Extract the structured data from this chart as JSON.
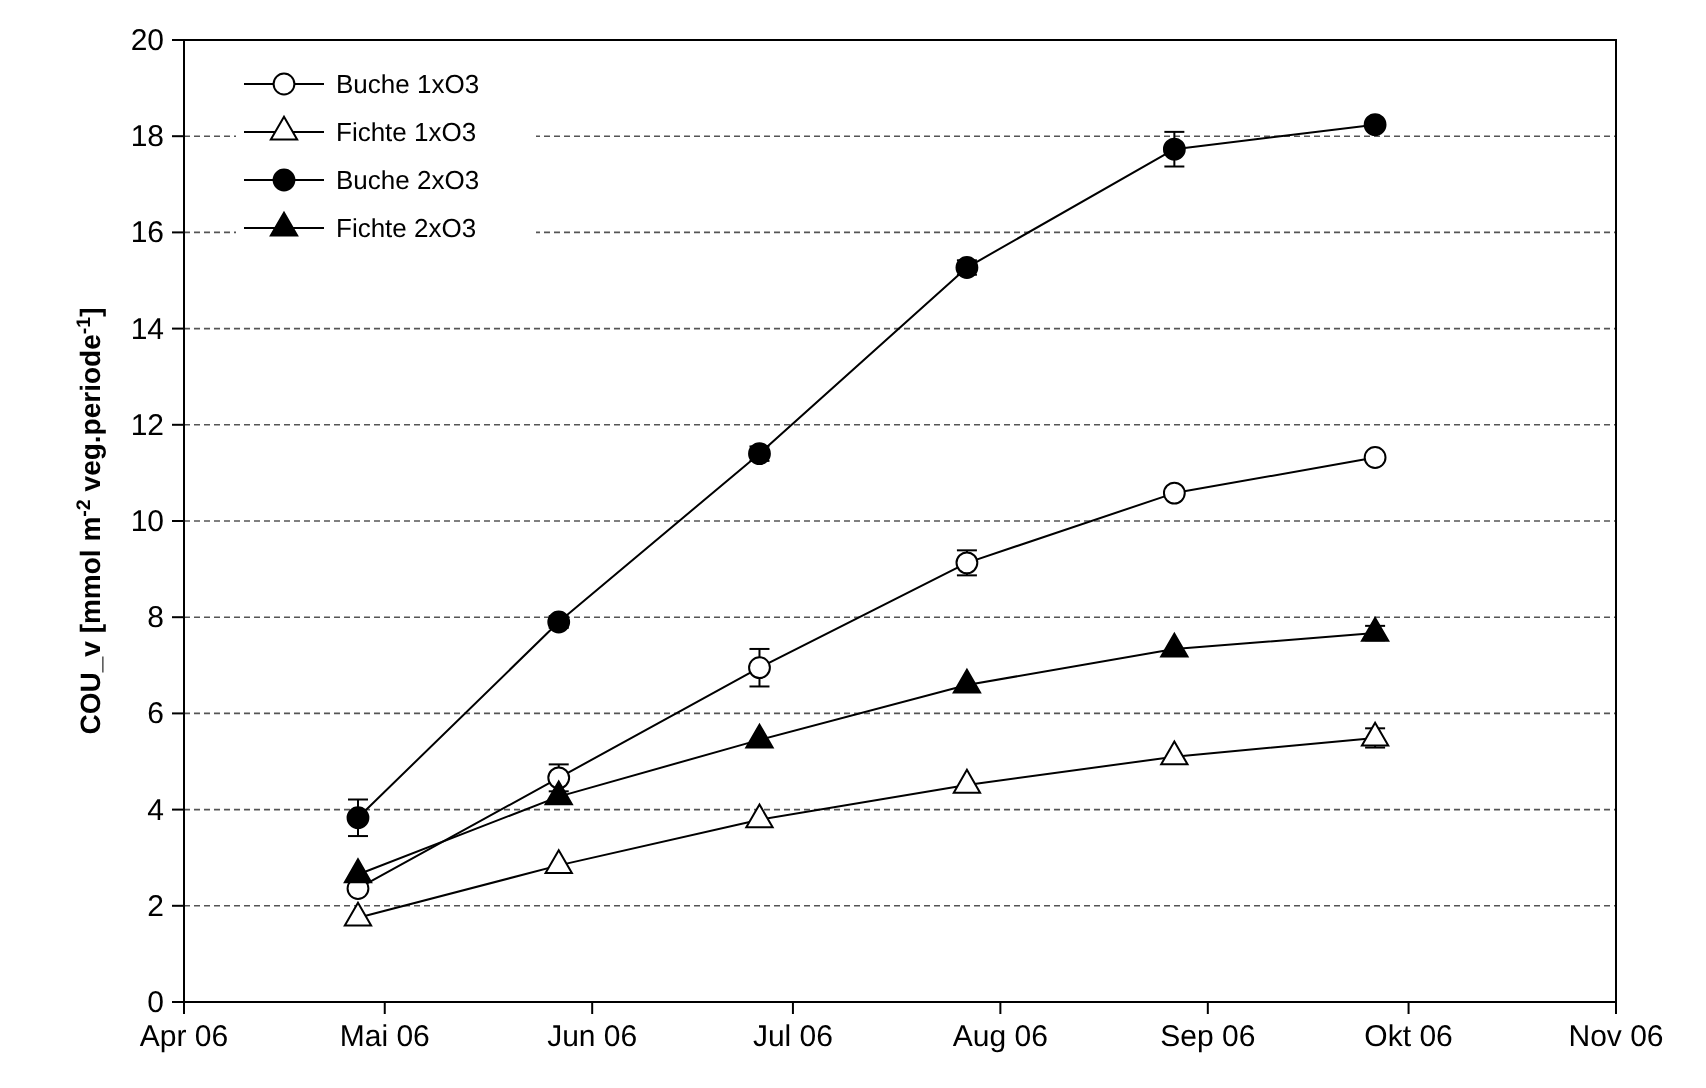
{
  "chart_data": {
    "type": "line",
    "ylabel": "COU_v [mmol m$^{-2}$ veg.periode$^{-1}$]",
    "x": [
      "2006-04-27",
      "2006-05-27",
      "2006-06-26",
      "2006-07-27",
      "2006-08-27",
      "2006-09-26"
    ],
    "xlim": [
      "2006-04-01",
      "2006-11-01"
    ],
    "xticks": [
      {
        "value": "2006-04-01",
        "label": "Apr 06"
      },
      {
        "value": "2006-05-01",
        "label": "Mai 06"
      },
      {
        "value": "2006-06-01",
        "label": "Jun 06"
      },
      {
        "value": "2006-07-01",
        "label": "Jul 06"
      },
      {
        "value": "2006-08-01",
        "label": "Aug 06"
      },
      {
        "value": "2006-09-01",
        "label": "Sep 06"
      },
      {
        "value": "2006-10-01",
        "label": "Okt 06"
      },
      {
        "value": "2006-11-01",
        "label": "Nov 06"
      }
    ],
    "ylim": [
      0,
      20
    ],
    "yticks": [
      0,
      2,
      4,
      6,
      8,
      10,
      12,
      14,
      16,
      18,
      20
    ],
    "grid": "y",
    "legend": "top left",
    "line_style": "solid",
    "series": [
      {
        "name": "Buche 1xO3",
        "color": "#ffffff",
        "marker": "circle",
        "values": [
          2.36,
          4.66,
          6.95,
          9.13,
          10.58,
          11.32
        ],
        "errors": [
          null,
          0.28,
          0.39,
          0.26,
          null,
          null
        ]
      },
      {
        "name": "Fichte 1xO3",
        "color": "#ffffff",
        "marker": "triangle",
        "values": [
          1.75,
          2.84,
          3.79,
          4.51,
          5.1,
          5.49
        ],
        "errors": [
          null,
          null,
          null,
          null,
          null,
          0.2
        ]
      },
      {
        "name": "Buche 2xO3",
        "color": "#000000",
        "marker": "circle",
        "values": [
          3.83,
          7.9,
          11.4,
          15.27,
          17.73,
          18.24
        ],
        "errors": [
          0.38,
          0.12,
          0.15,
          0.15,
          0.36,
          null
        ]
      },
      {
        "name": "Fichte 2xO3",
        "color": "#000000",
        "marker": "triangle",
        "values": [
          2.65,
          4.27,
          5.45,
          6.59,
          7.34,
          7.67
        ],
        "errors": [
          null,
          null,
          null,
          null,
          null,
          0.15
        ]
      }
    ]
  }
}
